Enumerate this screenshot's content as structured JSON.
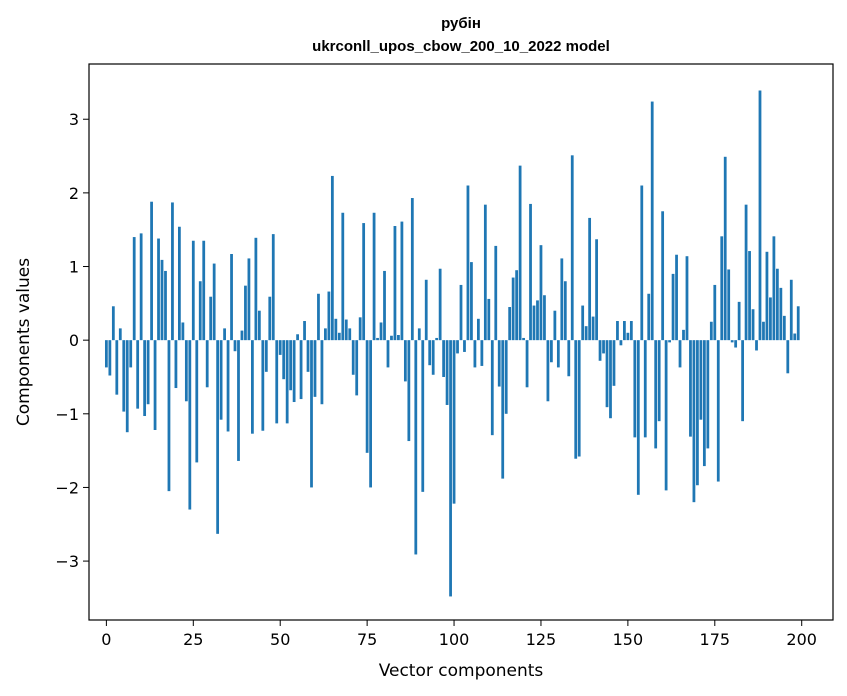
{
  "chart_data": {
    "type": "bar",
    "title": "рубін",
    "subtitle": "ukrconll_upos_cbow_200_10_2022 model",
    "xlabel": "Vector components",
    "ylabel": "Components values",
    "xlim": [
      -5,
      209
    ],
    "ylim": [
      -3.8,
      3.75
    ],
    "xticks": [
      0,
      25,
      50,
      75,
      100,
      125,
      150,
      175,
      200
    ],
    "yticks": [
      -3,
      -2,
      -1,
      0,
      1,
      2,
      3
    ],
    "ytick_labels": [
      "−3",
      "−2",
      "−1",
      "0",
      "1",
      "2",
      "3"
    ],
    "bar_color": "#1f77b4",
    "series": [
      {
        "name": "рубін",
        "values": [
          -0.37,
          -0.48,
          0.46,
          -0.74,
          0.16,
          -0.97,
          -1.25,
          -0.37,
          1.4,
          -0.93,
          1.45,
          -1.03,
          -0.87,
          1.88,
          -1.22,
          1.38,
          1.09,
          0.94,
          -2.05,
          1.87,
          -0.65,
          1.54,
          0.24,
          -0.83,
          -2.3,
          1.35,
          -1.66,
          0.8,
          1.35,
          -0.64,
          0.59,
          1.04,
          -2.63,
          -1.08,
          0.16,
          -1.24,
          1.17,
          -0.15,
          -1.64,
          0.13,
          0.74,
          1.11,
          -1.27,
          1.39,
          0.4,
          -1.23,
          -0.43,
          0.59,
          1.44,
          -1.13,
          -0.2,
          -0.53,
          -1.13,
          -0.68,
          -0.84,
          0.08,
          -0.8,
          0.26,
          -0.43,
          -2.0,
          -0.77,
          0.63,
          -0.87,
          0.16,
          0.66,
          2.23,
          0.29,
          0.1,
          1.73,
          0.28,
          0.16,
          -0.47,
          -0.75,
          0.31,
          1.59,
          -1.53,
          -2.0,
          1.73,
          0.03,
          0.24,
          0.94,
          -0.37,
          0.06,
          1.55,
          0.07,
          1.61,
          -0.56,
          -1.37,
          1.93,
          -2.91,
          0.16,
          -2.06,
          0.82,
          -0.34,
          -0.47,
          0.03,
          0.97,
          -0.5,
          -0.88,
          -3.48,
          -2.22,
          -0.18,
          0.75,
          -0.16,
          2.1,
          1.06,
          -0.37,
          0.29,
          -0.35,
          1.84,
          0.56,
          -1.29,
          1.28,
          -0.63,
          -1.88,
          -1.0,
          0.45,
          0.85,
          0.95,
          2.37,
          0.03,
          -0.64,
          1.85,
          0.47,
          0.54,
          1.29,
          0.61,
          -0.83,
          -0.3,
          0.4,
          -0.37,
          1.11,
          0.8,
          -0.49,
          2.51,
          -1.61,
          -1.58,
          0.47,
          0.19,
          1.66,
          0.32,
          1.37,
          -0.28,
          -0.18,
          -0.91,
          -1.06,
          -0.62,
          0.26,
          -0.07,
          0.26,
          0.1,
          0.26,
          -1.32,
          -2.1,
          2.1,
          -1.32,
          0.63,
          3.24,
          -1.47,
          -1.1,
          1.75,
          -2.04,
          -0.03,
          0.9,
          1.16,
          -0.37,
          0.14,
          1.14,
          -1.31,
          -2.2,
          -1.97,
          -1.08,
          -1.71,
          -1.47,
          0.25,
          0.75,
          -1.92,
          1.41,
          2.49,
          0.96,
          -0.03,
          -0.1,
          0.52,
          -1.1,
          1.84,
          1.21,
          0.42,
          -0.14,
          3.39,
          0.25,
          1.2,
          0.58,
          1.41,
          0.97,
          0.71,
          0.33,
          -0.45,
          0.82,
          0.09,
          0.46
        ]
      }
    ]
  }
}
